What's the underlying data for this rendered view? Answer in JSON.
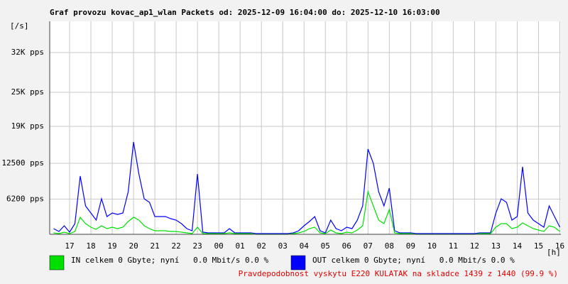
{
  "chart_data": {
    "type": "line",
    "title": "Graf provozu kovac_ap1_wlan Packets od: 2025-12-09 16:04:00 do: 2025-12-10 16:03:00",
    "y_label": "[/s]",
    "x_label": "[h]",
    "footer": "Pravdepodobnost vyskytu E220 KULATAK na skladce 1439 z 1440 (99.9 %)",
    "grid": true,
    "xlim": [
      16.0667,
      40.05
    ],
    "xticks": [
      17,
      18,
      19,
      20,
      21,
      22,
      23,
      {
        "value": 24,
        "label": "00"
      },
      {
        "value": 25,
        "label": "01"
      },
      {
        "value": 26,
        "label": "02"
      },
      {
        "value": 27,
        "label": "03"
      },
      {
        "value": 28,
        "label": "04"
      },
      {
        "value": 29,
        "label": "05"
      },
      {
        "value": 30,
        "label": "06"
      },
      {
        "value": 31,
        "label": "07"
      },
      {
        "value": 32,
        "label": "08"
      },
      {
        "value": 33,
        "label": "09"
      },
      {
        "value": 34,
        "label": "10"
      },
      {
        "value": 35,
        "label": "11"
      },
      {
        "value": 36,
        "label": "12"
      },
      {
        "value": 37,
        "label": "13"
      },
      {
        "value": 38,
        "label": "14"
      },
      {
        "value": 39,
        "label": "15"
      },
      {
        "value": 40,
        "label": "16"
      }
    ],
    "ylim": [
      0,
      37500
    ],
    "yticks": [
      {
        "value": 6200,
        "label": "6200 pps"
      },
      {
        "value": 12500,
        "label": "12500 pps"
      },
      {
        "value": 19000,
        "label": "19K pps"
      },
      {
        "value": 25000,
        "label": "25K pps"
      },
      {
        "value": 32000,
        "label": "32K pps"
      }
    ],
    "x": [
      16.25,
      16.5,
      16.75,
      17,
      17.25,
      17.5,
      17.75,
      18,
      18.25,
      18.5,
      18.75,
      19,
      19.25,
      19.5,
      19.75,
      20,
      20.25,
      20.5,
      20.75,
      21,
      21.25,
      21.5,
      21.75,
      22,
      22.25,
      22.5,
      22.75,
      23,
      23.25,
      23.5,
      23.75,
      24,
      24.25,
      24.5,
      24.75,
      25,
      25.25,
      25.5,
      25.75,
      26,
      26.25,
      26.5,
      26.75,
      27,
      27.25,
      27.5,
      27.75,
      28,
      28.25,
      28.5,
      28.75,
      29,
      29.25,
      29.5,
      29.75,
      30,
      30.25,
      30.5,
      30.75,
      31,
      31.25,
      31.5,
      31.75,
      32,
      32.25,
      32.5,
      32.75,
      33,
      33.25,
      33.5,
      33.75,
      34,
      34.25,
      34.5,
      34.75,
      35,
      35.25,
      35.5,
      35.75,
      36,
      36.25,
      36.5,
      36.75,
      37,
      37.25,
      37.5,
      37.75,
      38,
      38.25,
      38.5,
      38.75,
      39,
      39.25,
      39.5,
      39.75,
      40
    ],
    "series": [
      {
        "name": "OUT celkem 0 Gbyte; nyní   0.0 Mbit/s 0.0 %",
        "color": "#0000ff",
        "values": [
          1000,
          500,
          1500,
          375,
          1875,
          10250,
          5000,
          3750,
          2500,
          6250,
          3125,
          3750,
          3500,
          3750,
          7500,
          16250,
          10625,
          6250,
          5625,
          3125,
          3125,
          3125,
          2750,
          2500,
          1875,
          1000,
          625,
          10625,
          375,
          250,
          250,
          250,
          250,
          1000,
          250,
          250,
          250,
          250,
          125,
          125,
          125,
          125,
          125,
          125,
          125,
          250,
          625,
          1500,
          2250,
          3125,
          625,
          250,
          2500,
          1000,
          625,
          1250,
          1000,
          2500,
          5000,
          15000,
          12500,
          7500,
          5000,
          8125,
          625,
          250,
          250,
          250,
          125,
          125,
          125,
          125,
          125,
          125,
          125,
          125,
          125,
          125,
          125,
          125,
          250,
          250,
          250,
          3750,
          6250,
          5625,
          2500,
          3125,
          11875,
          3750,
          2500,
          1875,
          1250,
          5000,
          3125,
          1250
        ]
      },
      {
        "name": "IN celkem 0 Gbyte; nyní   0.0 Mbit/s 0.0 %",
        "color": "#00e000",
        "values": [
          250,
          125,
          375,
          125,
          500,
          3000,
          1875,
          1250,
          875,
          1500,
          1000,
          1250,
          1000,
          1250,
          2250,
          3000,
          2500,
          1500,
          1000,
          625,
          625,
          625,
          500,
          500,
          375,
          250,
          125,
          1250,
          125,
          125,
          125,
          125,
          125,
          250,
          125,
          125,
          125,
          125,
          0,
          0,
          0,
          0,
          0,
          0,
          0,
          125,
          250,
          500,
          1000,
          1250,
          250,
          125,
          750,
          250,
          125,
          375,
          250,
          750,
          1500,
          7500,
          5000,
          2500,
          1875,
          4375,
          250,
          125,
          125,
          125,
          0,
          0,
          0,
          0,
          0,
          0,
          0,
          0,
          0,
          0,
          0,
          0,
          125,
          125,
          125,
          1250,
          1875,
          1875,
          1000,
          1250,
          2000,
          1500,
          1000,
          750,
          500,
          1500,
          1250,
          500
        ]
      }
    ]
  }
}
